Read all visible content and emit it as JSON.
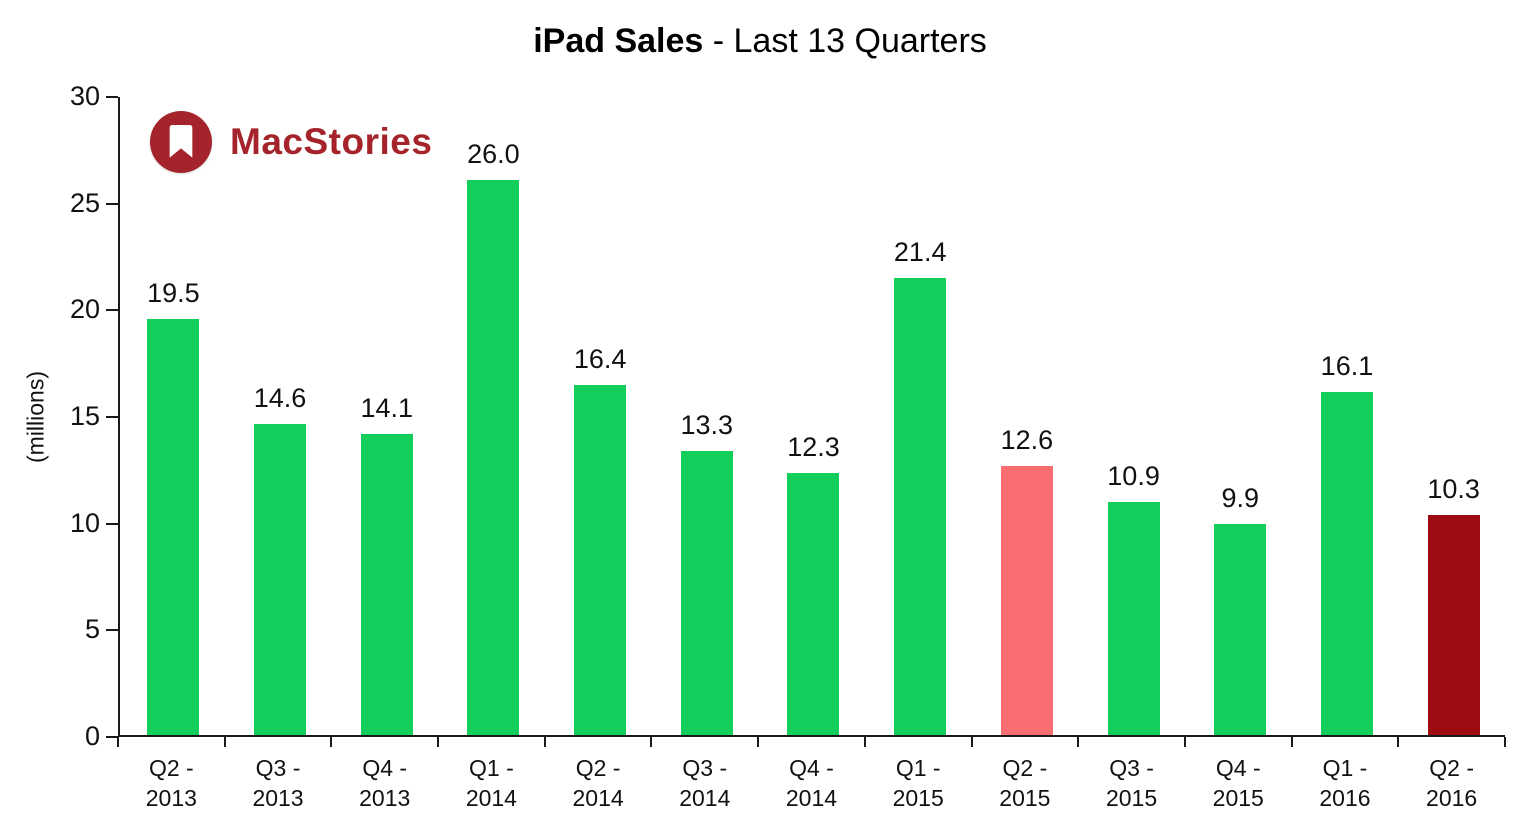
{
  "header": {
    "title_bold": "iPad Sales",
    "title_rest": " - Last 13 Quarters"
  },
  "logo": {
    "text": "MacStories",
    "color": "#A5242C"
  },
  "chart_data": {
    "type": "bar",
    "title": "iPad Sales - Last 13 Quarters",
    "xlabel": "",
    "ylabel": "(millions)",
    "ylim": [
      0,
      30
    ],
    "yticks": [
      0,
      5,
      10,
      15,
      20,
      25,
      30
    ],
    "grid": false,
    "legend": false,
    "categories": [
      "Q2 - 2013",
      "Q3 - 2013",
      "Q4 - 2013",
      "Q1 - 2014",
      "Q2 - 2014",
      "Q3 - 2014",
      "Q4 - 2014",
      "Q1 - 2015",
      "Q2 - 2015",
      "Q3 - 2015",
      "Q4 - 2015",
      "Q1 - 2016",
      "Q2 - 2016"
    ],
    "values": [
      19.5,
      14.6,
      14.1,
      26.0,
      16.4,
      13.3,
      12.3,
      21.4,
      12.6,
      10.9,
      9.9,
      16.1,
      10.3
    ],
    "labels": [
      "19.5",
      "14.6",
      "14.1",
      "26.0",
      "16.4",
      "13.3",
      "12.3",
      "21.4",
      "12.6",
      "10.9",
      "9.9",
      "16.1",
      "10.3"
    ],
    "bar_colors": [
      "#14CE5B",
      "#14CE5B",
      "#14CE5B",
      "#14CE5B",
      "#14CE5B",
      "#14CE5B",
      "#14CE5B",
      "#14CE5B",
      "#FA6E72",
      "#14CE5B",
      "#14CE5B",
      "#14CE5B",
      "#9E0B10"
    ],
    "colors": {
      "bar_green": "#14CE5B",
      "bar_pink": "#FA6E72",
      "bar_dark_red": "#9E0B10",
      "axis": "#1a1a1a",
      "text": "#111111"
    }
  }
}
